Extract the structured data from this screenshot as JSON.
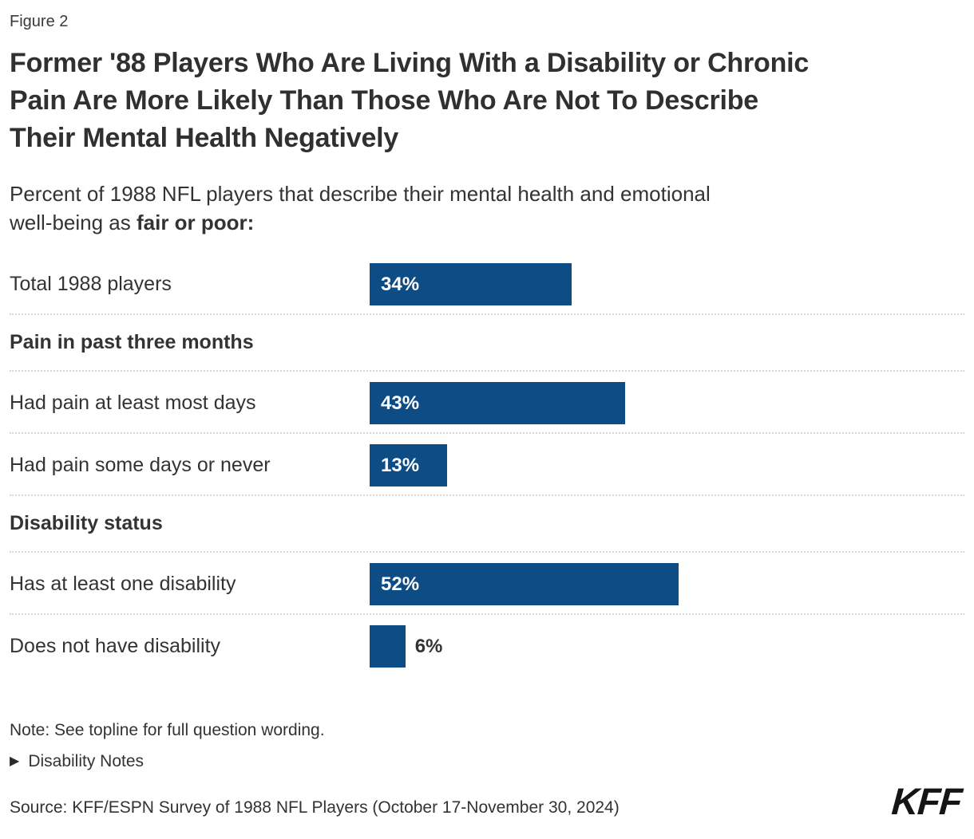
{
  "figure_label": "Figure 2",
  "title_lines": [
    "Former '88 Players Who Are Living With a Disability or Chronic",
    "Pain Are More Likely Than Those Who Are Not To Describe",
    "Their Mental Health Negatively"
  ],
  "subtitle_lines": {
    "line1": "Percent of 1988 NFL players that describe their mental health and emotional",
    "line2_regular": "well-being as ",
    "line2_bold": "fair or poor:"
  },
  "colors": {
    "bar": "#0d4c85",
    "text": "#333333",
    "divider": "#d8d8d8"
  },
  "chart_data": {
    "type": "bar",
    "orientation": "horizontal",
    "title": "Former '88 Players Who Are Living With a Disability or Chronic Pain Are More Likely Than Those Who Are Not To Describe Their Mental Health Negatively",
    "subtitle": "Percent of 1988 NFL players that describe their mental health and emotional well-being as fair or poor:",
    "unit": "%",
    "xlim": [
      0,
      100
    ],
    "grid": false,
    "legend": false,
    "value_labels": "inside-start, outside for small bars",
    "groups": [
      {
        "header": null,
        "rows": [
          {
            "label": "Total 1988 players",
            "value": 34
          }
        ]
      },
      {
        "header": "Pain in past three months",
        "rows": [
          {
            "label": "Had pain at least most days",
            "value": 43
          },
          {
            "label": "Had pain some days or never",
            "value": 13
          }
        ]
      },
      {
        "header": "Disability status",
        "rows": [
          {
            "label": "Has at least one disability",
            "value": 52
          },
          {
            "label": "Does not have disability",
            "value": 6
          }
        ]
      }
    ]
  },
  "footer": {
    "note": "Note: See topline for full question wording.",
    "disclosure_label": "Disability Notes",
    "source": "Source: KFF/ESPN Survey of 1988 NFL Players (October 17-November 30, 2024)",
    "logo": "KFF"
  }
}
